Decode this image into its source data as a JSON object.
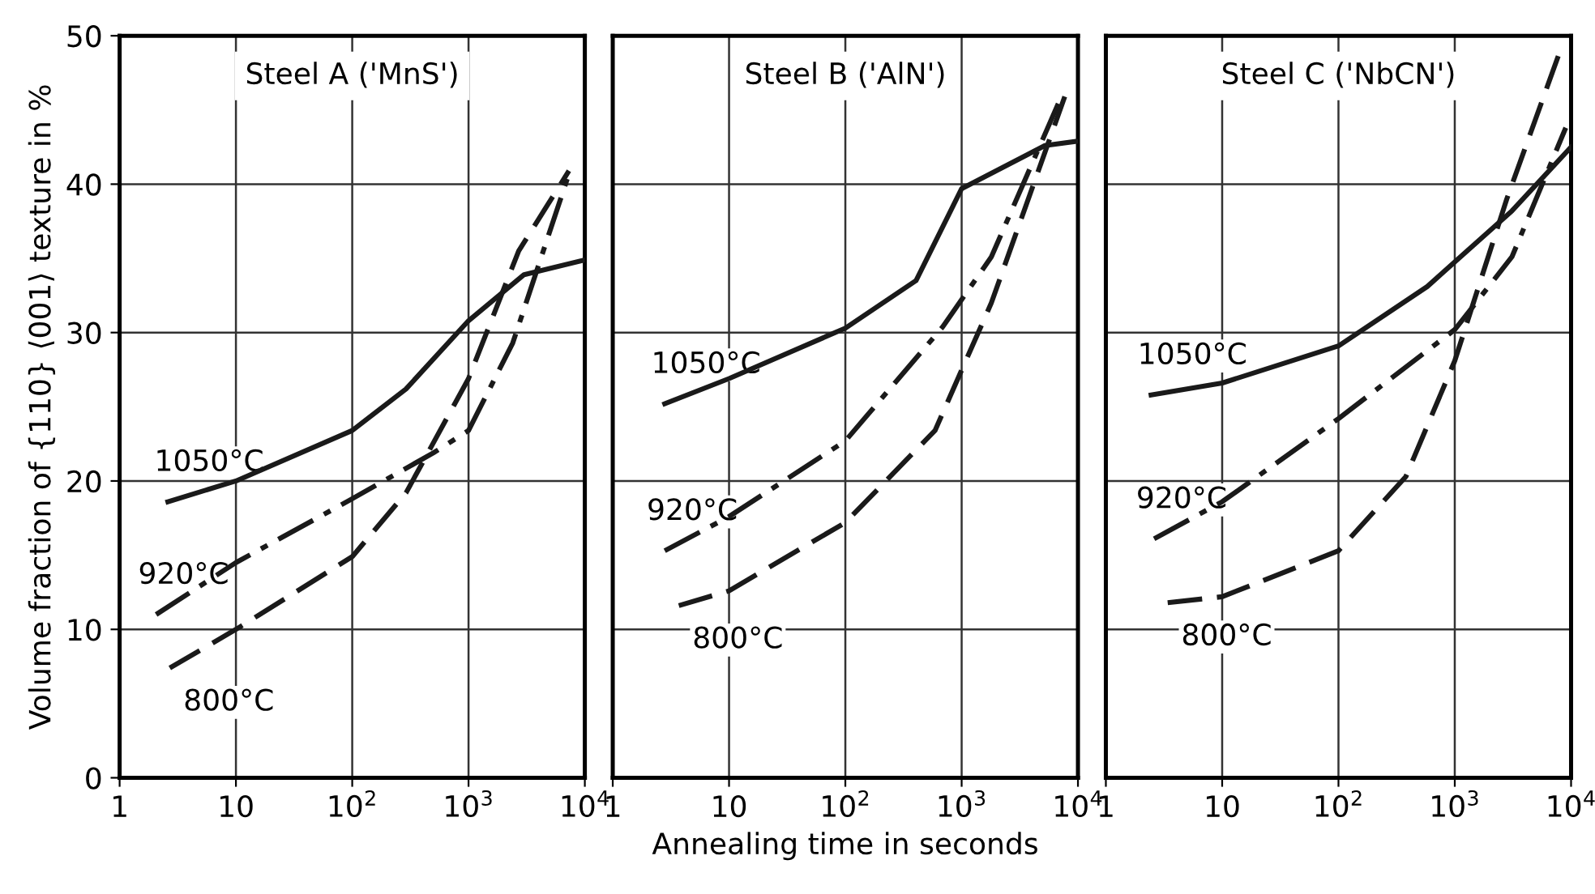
{
  "chart_data": [
    {
      "type": "line",
      "title": "Steel A ('MnS')",
      "ylabel": "Volume fraction of {110} ⟨001⟩ texture in %",
      "xlim": [
        1,
        10000
      ],
      "ylim": [
        0,
        50
      ],
      "log": "x",
      "grid": true,
      "xticks": [
        1,
        10,
        {
          "value": 100,
          "label": "10$^{2}$"
        },
        {
          "value": 1000,
          "label": "10$^{3}$"
        },
        {
          "value": 10000,
          "label": "10$^{4}$"
        }
      ],
      "yticks": [
        0,
        10,
        20,
        30,
        40,
        50
      ],
      "series": [
        {
          "name": "1050°C",
          "color": "#1a1a1a",
          "line_style": "solid",
          "x": [
            2.6,
            10,
            100,
            290,
            1000,
            3000,
            10000
          ],
          "values": [
            18.6,
            20,
            23.4,
            26.2,
            30.8,
            33.9,
            34.9
          ]
        },
        {
          "name": "920°C",
          "color": "#1a1a1a",
          "line_style": "dashdot",
          "x": [
            2.06,
            10,
            100,
            500,
            1000,
            2400,
            7300
          ],
          "values": [
            11,
            14.5,
            18.8,
            21.9,
            23.4,
            29.3,
            40.7
          ]
        },
        {
          "name": "800°C",
          "color": "#1a1a1a",
          "line_style": "dashed",
          "x": [
            2.7,
            10,
            100,
            290,
            1000,
            2700,
            7300
          ],
          "values": [
            7.4,
            10,
            14.9,
            19.2,
            26.9,
            35.5,
            40.9
          ]
        }
      ]
    },
    {
      "type": "line",
      "title": "Steel B ('AlN')",
      "xlabel": "Annealing time in seconds",
      "xlim": [
        1,
        10000
      ],
      "ylim": [
        0,
        50
      ],
      "log": "x",
      "grid": true,
      "tick_labels": "x",
      "xticks": [
        1,
        10,
        {
          "value": 100,
          "label": "10$^{2}$"
        },
        {
          "value": 1000,
          "label": "10$^{3}$"
        },
        {
          "value": 10000,
          "label": "10$^{4}$"
        }
      ],
      "yticks": [
        0,
        10,
        20,
        30,
        40,
        50
      ],
      "series": [
        {
          "name": "1050°C",
          "color": "#1a1a1a",
          "line_style": "solid",
          "x": [
            2.8,
            10,
            100,
            405,
            1000,
            5200,
            10000
          ],
          "values": [
            25.2,
            26.9,
            30.3,
            33.5,
            39.7,
            42.6,
            42.9
          ]
        },
        {
          "name": "920°C",
          "color": "#1a1a1a",
          "line_style": "dashdot",
          "x": [
            2.8,
            10,
            100,
            690,
            1800,
            7200
          ],
          "values": [
            15.3,
            17.6,
            22.7,
            30.4,
            35.1,
            45.9
          ]
        },
        {
          "name": "800°C",
          "color": "#1a1a1a",
          "line_style": "dashed",
          "x": [
            3.7,
            10,
            100,
            590,
            1800,
            7700
          ],
          "values": [
            11.6,
            12.6,
            17.2,
            23.4,
            32,
            45.9
          ]
        }
      ]
    },
    {
      "type": "line",
      "title": "Steel C ('NbCN')",
      "xlim": [
        1,
        10000
      ],
      "ylim": [
        0,
        50
      ],
      "log": "x",
      "grid": true,
      "tick_labels": "x",
      "xticks": [
        1,
        10,
        {
          "value": 100,
          "label": "10$^{2}$"
        },
        {
          "value": 1000,
          "label": "10$^{3}$"
        },
        {
          "value": 10000,
          "label": "10$^{4}$"
        }
      ],
      "yticks": [
        0,
        10,
        20,
        30,
        40,
        50
      ],
      "series": [
        {
          "name": "1050°C",
          "color": "#1a1a1a",
          "line_style": "solid",
          "x": [
            2.45,
            10,
            100,
            580,
            3100,
            10000
          ],
          "values": [
            25.8,
            26.6,
            29.1,
            33.1,
            38.2,
            42.5
          ]
        },
        {
          "name": "920°C",
          "color": "#1a1a1a",
          "line_style": "dashdot",
          "x": [
            2.6,
            10,
            100,
            1000,
            3100,
            9000
          ],
          "values": [
            16.1,
            18.6,
            24.2,
            30.2,
            35.1,
            43.8
          ]
        },
        {
          "name": "800°C",
          "color": "#1a1a1a",
          "line_style": "dashed",
          "x": [
            3.4,
            10,
            100,
            380,
            1000,
            2800,
            8500
          ],
          "values": [
            11.8,
            12.2,
            15.3,
            20.3,
            28.1,
            39,
            49.5
          ]
        }
      ]
    }
  ]
}
